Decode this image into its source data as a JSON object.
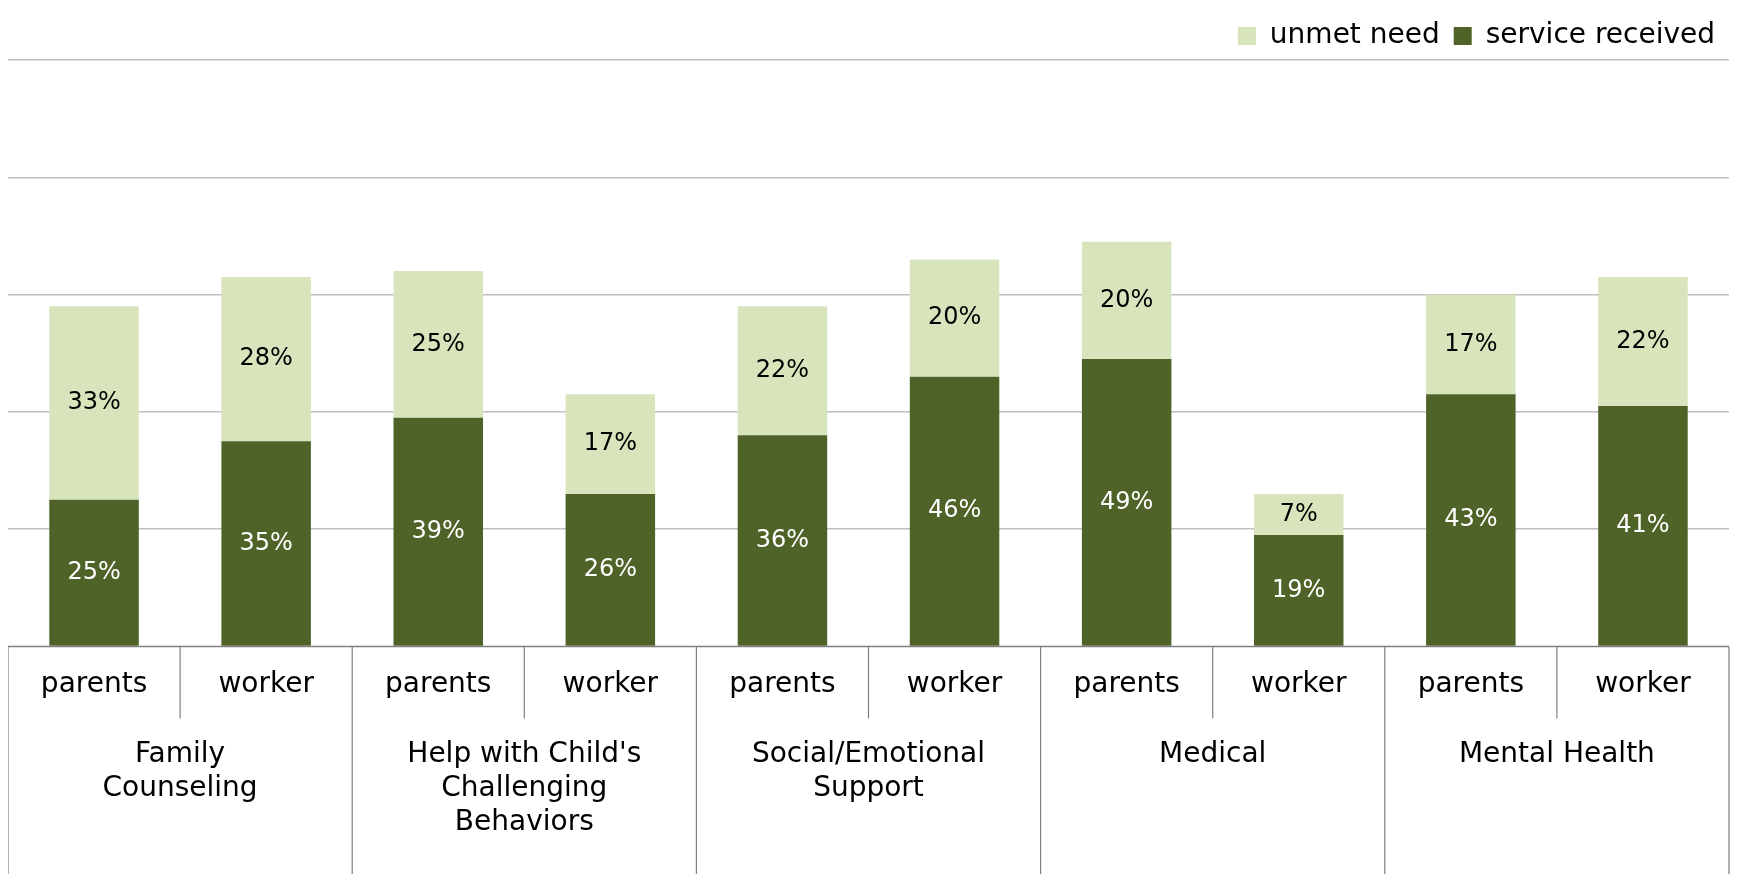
{
  "chart_data": {
    "type": "bar",
    "stacked": true,
    "categories": [
      "parents",
      "worker",
      "parents",
      "worker",
      "parents",
      "worker",
      "parents",
      "worker",
      "parents",
      "worker"
    ],
    "series": [
      {
        "name": "service received",
        "color": "#4f6228",
        "values": [
          25,
          35,
          39,
          26,
          36,
          46,
          49,
          19,
          43,
          41
        ],
        "value_labels": [
          "25%",
          "35%",
          "39%",
          "26%",
          "36%",
          "46%",
          "49%",
          "19%",
          "43%",
          "41%"
        ]
      },
      {
        "name": "unmet need",
        "color": "#d7e4bc",
        "values": [
          33,
          28,
          25,
          17,
          22,
          20,
          20,
          7,
          17,
          22
        ],
        "value_labels": [
          "33%",
          "28%",
          "25%",
          "17%",
          "22%",
          "20%",
          "20%",
          "7%",
          "17%",
          "22%"
        ]
      }
    ],
    "annotations": [
      "Family Counseling",
      "Help with Child's Challenging Behaviors",
      "Social/Emotional Support",
      "Medical",
      "Mental Health"
    ],
    "ylim": [
      0,
      100
    ],
    "grid": "y",
    "tick_labels": "x",
    "legend": "top right"
  }
}
